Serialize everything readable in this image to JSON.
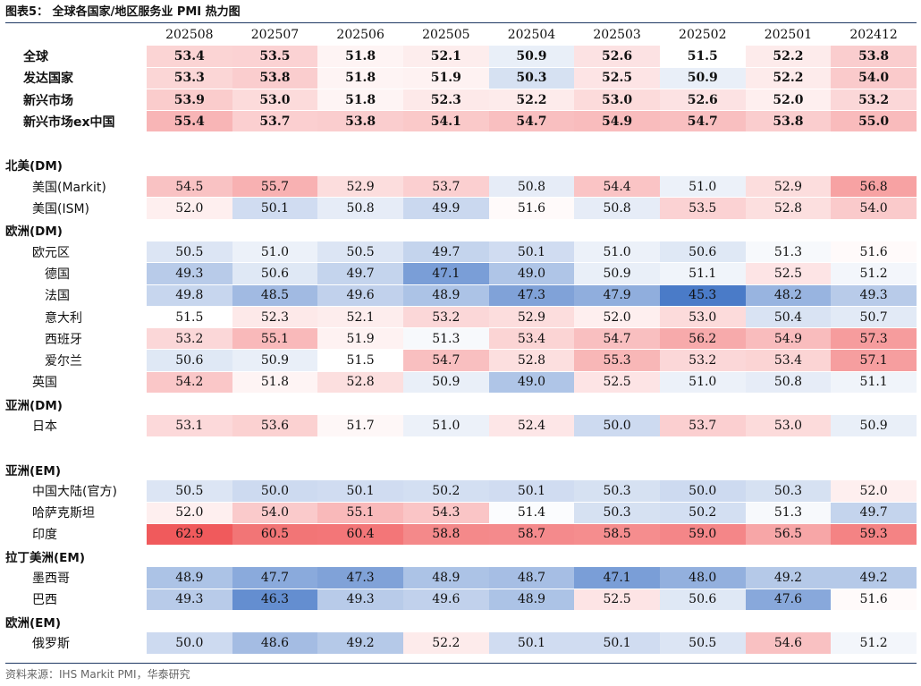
{
  "header": {
    "title": "图表5：  全球各国家/地区服务业 PMI 热力图",
    "source": "资料来源：IHS Markit PMI，华泰研究"
  },
  "colors": {
    "low": "#4a7bc8",
    "mid": "#ffffff",
    "high": "#f05a5c"
  },
  "chart_data": {
    "type": "heatmap",
    "title": "全球各国家/地区服务业 PMI 热力图",
    "columns": [
      "202508",
      "202507",
      "202506",
      "202505",
      "202504",
      "202503",
      "202502",
      "202501",
      "202412"
    ],
    "color_scale": {
      "min": 45.3,
      "center": 51.5,
      "max": 62.9
    },
    "rows": [
      {
        "label": "全球",
        "kind": "main",
        "values": [
          53.4,
          53.5,
          51.8,
          52.1,
          50.9,
          52.6,
          51.5,
          52.2,
          53.8
        ]
      },
      {
        "label": "发达国家",
        "kind": "main",
        "values": [
          53.3,
          53.8,
          51.8,
          51.9,
          50.3,
          52.5,
          50.9,
          52.2,
          54.0
        ]
      },
      {
        "label": "新兴市场",
        "kind": "main",
        "values": [
          53.9,
          53.0,
          51.8,
          52.3,
          52.2,
          53.0,
          52.6,
          52.0,
          53.2
        ]
      },
      {
        "label": "新兴市场ex中国",
        "kind": "main",
        "values": [
          55.4,
          53.7,
          53.8,
          54.1,
          54.7,
          54.9,
          54.7,
          53.8,
          55.0
        ]
      },
      {
        "label": "",
        "kind": "blank"
      },
      {
        "label": "北美(DM)",
        "kind": "section"
      },
      {
        "label": "美国(Markit)",
        "kind": "lvl1",
        "values": [
          54.5,
          55.7,
          52.9,
          53.7,
          50.8,
          54.4,
          51.0,
          52.9,
          56.8
        ]
      },
      {
        "label": "美国(ISM)",
        "kind": "lvl1",
        "values": [
          52.0,
          50.1,
          50.8,
          49.9,
          51.6,
          50.8,
          53.5,
          52.8,
          54.0
        ]
      },
      {
        "label": "欧洲(DM)",
        "kind": "section"
      },
      {
        "label": "欧元区",
        "kind": "lvl1",
        "values": [
          50.5,
          51.0,
          50.5,
          49.7,
          50.1,
          51.0,
          50.6,
          51.3,
          51.6
        ]
      },
      {
        "label": "德国",
        "kind": "lvl2",
        "values": [
          49.3,
          50.6,
          49.7,
          47.1,
          49.0,
          50.9,
          51.1,
          52.5,
          51.2
        ]
      },
      {
        "label": "法国",
        "kind": "lvl2",
        "values": [
          49.8,
          48.5,
          49.6,
          48.9,
          47.3,
          47.9,
          45.3,
          48.2,
          49.3
        ]
      },
      {
        "label": "意大利",
        "kind": "lvl2",
        "values": [
          51.5,
          52.3,
          52.1,
          53.2,
          52.9,
          52.0,
          53.0,
          50.4,
          50.7
        ]
      },
      {
        "label": "西班牙",
        "kind": "lvl2",
        "values": [
          53.2,
          55.1,
          51.9,
          51.3,
          53.4,
          54.7,
          56.2,
          54.9,
          57.3
        ]
      },
      {
        "label": "爱尔兰",
        "kind": "lvl2",
        "values": [
          50.6,
          50.9,
          51.5,
          54.7,
          52.8,
          55.3,
          53.2,
          53.4,
          57.1
        ]
      },
      {
        "label": "英国",
        "kind": "lvl1",
        "values": [
          54.2,
          51.8,
          52.8,
          50.9,
          49.0,
          52.5,
          51.0,
          50.8,
          51.1
        ]
      },
      {
        "label": "亚洲(DM)",
        "kind": "section"
      },
      {
        "label": "日本",
        "kind": "lvl1",
        "values": [
          53.1,
          53.6,
          51.7,
          51.0,
          52.4,
          50.0,
          53.7,
          53.0,
          50.9
        ]
      },
      {
        "label": "",
        "kind": "blank"
      },
      {
        "label": "亚洲(EM)",
        "kind": "section"
      },
      {
        "label": "中国大陆(官方)",
        "kind": "lvl1",
        "values": [
          50.5,
          50.0,
          50.1,
          50.2,
          50.1,
          50.3,
          50.0,
          50.3,
          52.0
        ]
      },
      {
        "label": "哈萨克斯坦",
        "kind": "lvl1",
        "values": [
          52.0,
          54.0,
          55.1,
          54.3,
          51.4,
          50.3,
          50.2,
          51.3,
          49.7
        ]
      },
      {
        "label": "印度",
        "kind": "lvl1",
        "values": [
          62.9,
          60.5,
          60.4,
          58.8,
          58.7,
          58.5,
          59.0,
          56.5,
          59.3
        ]
      },
      {
        "label": "拉丁美洲(EM)",
        "kind": "section"
      },
      {
        "label": "墨西哥",
        "kind": "lvl1",
        "values": [
          48.9,
          47.7,
          47.3,
          48.9,
          48.7,
          47.1,
          48.0,
          49.2,
          49.2
        ]
      },
      {
        "label": "巴西",
        "kind": "lvl1",
        "values": [
          49.3,
          46.3,
          49.3,
          49.6,
          48.9,
          52.5,
          50.6,
          47.6,
          51.6
        ]
      },
      {
        "label": "欧洲(EM)",
        "kind": "section"
      },
      {
        "label": "俄罗斯",
        "kind": "lvl1",
        "values": [
          50.0,
          48.6,
          49.2,
          52.2,
          50.1,
          50.1,
          50.5,
          54.6,
          51.2
        ]
      }
    ]
  }
}
